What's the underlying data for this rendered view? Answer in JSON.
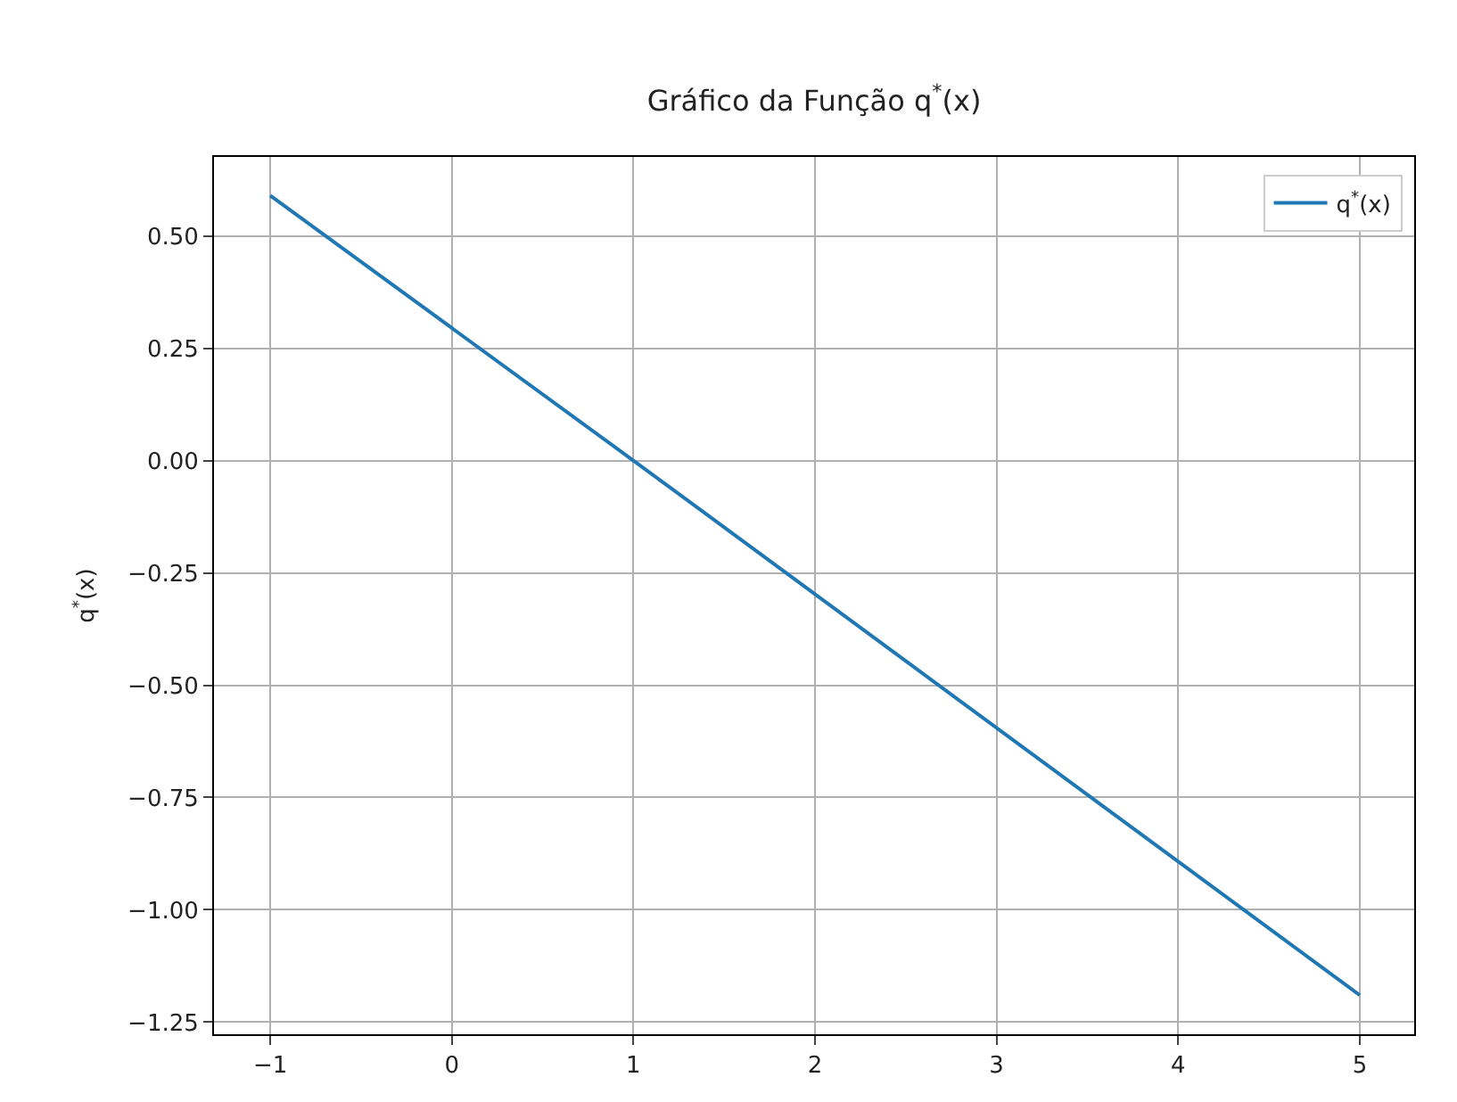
{
  "chart_data": {
    "type": "line",
    "title": "Gráfico da Função q$^{*}$(x)",
    "ylabel": "q$^{*}$(x)",
    "x": [
      -1,
      1,
      5
    ],
    "series": [
      {
        "name": "q$^{*}$(x)",
        "color": "#1f77b4",
        "values": [
          0.59,
          0.0,
          -1.19
        ]
      }
    ],
    "xlim": [
      -1.31,
      5.3
    ],
    "ylim": [
      -1.277,
      0.676
    ],
    "xticks": [
      {
        "value": -1,
        "label": "−1"
      },
      0,
      1,
      2,
      3,
      4,
      5
    ],
    "yticks": [
      {
        "value": 0.5,
        "label": "0.50"
      },
      {
        "value": 0.25,
        "label": "0.25"
      },
      {
        "value": 0,
        "label": "0.00"
      },
      {
        "value": -0.25,
        "label": "−0.25"
      },
      {
        "value": -0.5,
        "label": "−0.50"
      },
      {
        "value": -0.75,
        "label": "−0.75"
      },
      {
        "value": -1.0,
        "label": "−1.00"
      },
      {
        "value": -1.25,
        "label": "−1.25"
      }
    ],
    "grid": true,
    "legend": "top right",
    "line_style": "solid",
    "marker": "none"
  }
}
